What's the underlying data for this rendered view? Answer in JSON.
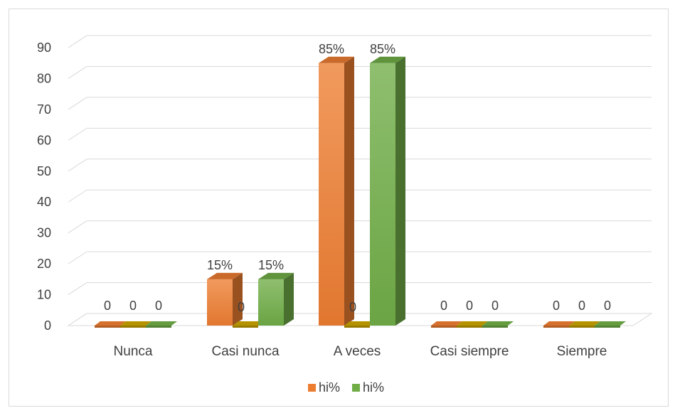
{
  "chart_data": {
    "type": "bar",
    "style": "3d-clustered-column",
    "categories": [
      "Nunca",
      "Casi nunca",
      "A veces",
      "Casi siempre",
      "Siempre"
    ],
    "series": [
      {
        "name": "hi%",
        "values": [
          0,
          15,
          85,
          0,
          0
        ],
        "labels": [
          "0",
          "15%",
          "85%",
          "0",
          "0"
        ],
        "color": "#ED7D31",
        "in_legend": true
      },
      {
        "name": "",
        "values": [
          0,
          0,
          0,
          0,
          0
        ],
        "labels": [
          "0",
          "0",
          "0",
          "0",
          "0"
        ],
        "color": "#C9A300",
        "in_legend": false
      },
      {
        "name": "hi%",
        "values": [
          0,
          15,
          85,
          0,
          0
        ],
        "labels": [
          "0",
          "15%",
          "85%",
          "0",
          "0"
        ],
        "color": "#70AD47",
        "in_legend": true
      }
    ],
    "yticks": [
      0,
      10,
      20,
      30,
      40,
      50,
      60,
      70,
      80,
      90
    ],
    "ylim": [
      0,
      90
    ],
    "grid": true,
    "legend": "bottom",
    "title": "",
    "xlabel": "",
    "ylabel": ""
  }
}
